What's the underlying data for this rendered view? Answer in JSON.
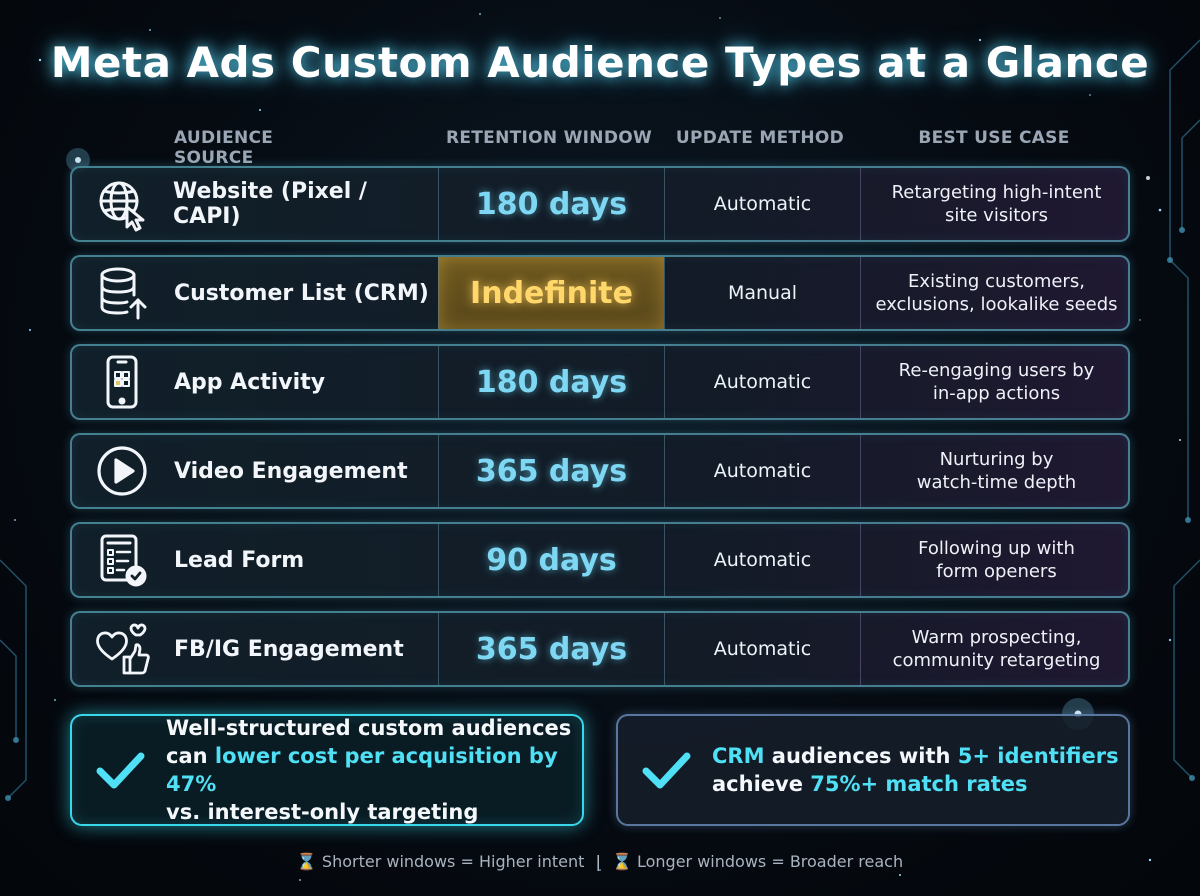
{
  "title": "Meta Ads Custom Audience Types at a Glance",
  "columns": {
    "source": "AUDIENCE SOURCE",
    "retention": "RETENTION WINDOW",
    "update": "UPDATE METHOD",
    "use": "BEST USE CASE"
  },
  "rows": [
    {
      "icon": "globe-cursor-icon",
      "source": "Website (Pixel / CAPI)",
      "retention": "180 days",
      "update": "Automatic",
      "use": "Retargeting high-intent\nsite visitors",
      "highlight": false
    },
    {
      "icon": "database-upload-icon",
      "source": "Customer List (CRM)",
      "retention": "Indefinite",
      "update": "Manual",
      "use": "Existing customers,\nexclusions, lookalike seeds",
      "highlight": true
    },
    {
      "icon": "smartphone-icon",
      "source": "App Activity",
      "retention": "180 days",
      "update": "Automatic",
      "use": "Re-engaging users by\nin-app actions",
      "highlight": false
    },
    {
      "icon": "play-icon",
      "source": "Video Engagement",
      "retention": "365 days",
      "update": "Automatic",
      "use": "Nurturing by\nwatch-time depth",
      "highlight": false
    },
    {
      "icon": "form-check-icon",
      "source": "Lead Form",
      "retention": "90 days",
      "update": "Automatic",
      "use": "Following up with\nform openers",
      "highlight": false
    },
    {
      "icon": "hearts-thumbs-up-icon",
      "source": "FB/IG Engagement",
      "retention": "365 days",
      "update": "Automatic",
      "use": "Warm prospecting,\ncommunity retargeting",
      "highlight": false
    }
  ],
  "callouts": {
    "left": {
      "line1": "Well-structured custom audiences",
      "line2_prefix": "can ",
      "line2_highlight": "lower cost per acquisition by 47%",
      "line3": "vs. interest-only targeting"
    },
    "right": {
      "hl1": "CRM",
      "text1": " audiences with ",
      "hl2": "5+ identifiers",
      "text2": "achieve ",
      "hl3": "75%+ match rates"
    }
  },
  "footer": {
    "left": "Shorter windows = Higher intent",
    "separator": "|",
    "right": "Longer windows = Broader reach"
  },
  "colors": {
    "accent_cyan": "#4fe0f5",
    "retention_blue": "#7fd8f3",
    "highlight_gold": "#ffd76a"
  }
}
